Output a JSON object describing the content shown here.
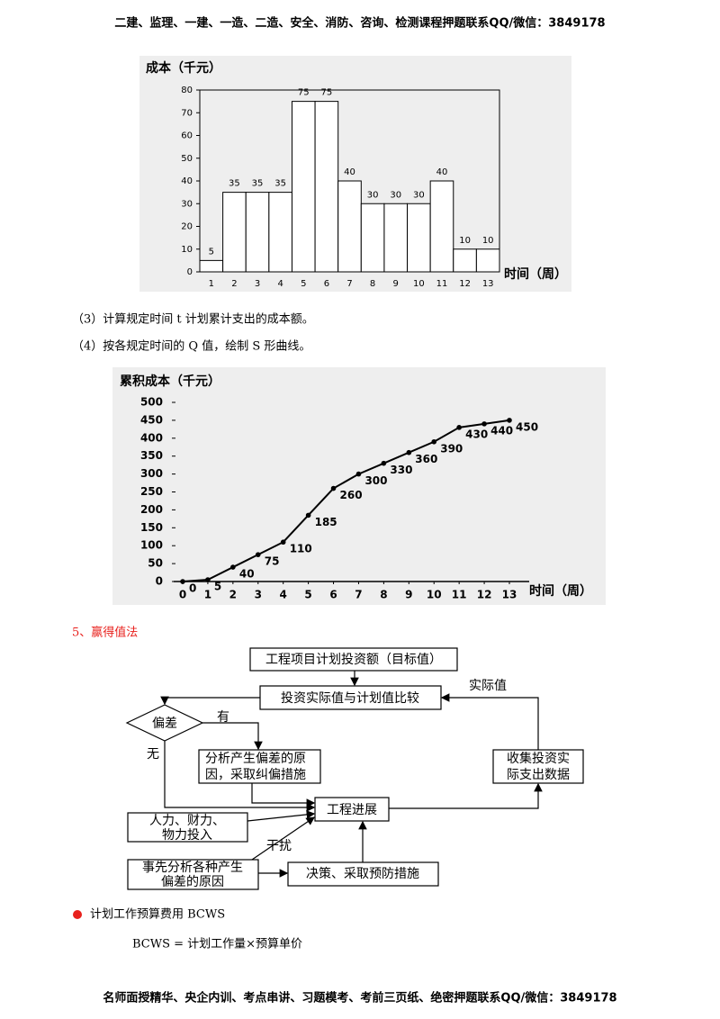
{
  "header": "二建、监理、一建、一造、二造、安全、消防、咨询、检测课程押题联系QQ/微信：3849178",
  "chart_data": [
    {
      "type": "bar",
      "y_label": "成本（千元）",
      "x_label": "时间（周）",
      "categories": [
        "1",
        "2",
        "3",
        "4",
        "5",
        "6",
        "7",
        "8",
        "9",
        "10",
        "11",
        "12",
        "13"
      ],
      "values": [
        5,
        35,
        35,
        35,
        75,
        75,
        40,
        30,
        30,
        30,
        40,
        10,
        10
      ],
      "color": "#ffffff",
      "edge_color": "#000000",
      "ylim": [
        0,
        80
      ],
      "yticks": [
        0,
        10,
        20,
        30,
        40,
        50,
        60,
        70,
        80
      ]
    },
    {
      "type": "line",
      "y_label": "累积成本（千元）",
      "x_label": "时间（周）",
      "x": [
        0,
        1,
        2,
        3,
        4,
        5,
        6,
        7,
        8,
        9,
        10,
        11,
        12,
        13
      ],
      "values": [
        0,
        5,
        40,
        75,
        110,
        185,
        260,
        300,
        330,
        360,
        390,
        430,
        440,
        450
      ],
      "color": "#000000",
      "xlim": [
        0,
        13
      ],
      "xticks": [
        0,
        1,
        2,
        3,
        4,
        5,
        6,
        7,
        8,
        9,
        10,
        11,
        12,
        13
      ],
      "ylim": [
        0,
        500
      ],
      "yticks": [
        0,
        50,
        100,
        150,
        200,
        250,
        300,
        350,
        400,
        450,
        500
      ]
    }
  ],
  "steps": [
    "（3）计算规定时间 t 计划累计支出的成本额。",
    "（4）按各规定时间的 Q 值，绘制 S 形曲线。"
  ],
  "section_title": "5、赢得值法",
  "diagram": {
    "nodes": [
      {
        "lines": [
          "工程项目计划投资额（目标值）"
        ]
      },
      {
        "lines": [
          "投资实际值与计划值比较"
        ]
      },
      {
        "lines": [
          "偏差"
        ]
      },
      {
        "lines": [
          "分析产生偏差的原",
          "因，采取纠偏措施"
        ]
      },
      {
        "lines": [
          "工程进展"
        ]
      },
      {
        "lines": [
          "收集投资实",
          "际支出数据"
        ]
      },
      {
        "lines": [
          "人力、财力、",
          "物力投入"
        ]
      },
      {
        "lines": [
          "事先分析各种产生",
          "偏差的原因"
        ]
      },
      {
        "lines": [
          "决策、采取预防措施"
        ]
      }
    ],
    "edge_labels": [
      "有",
      "无",
      "实际值",
      "干扰"
    ]
  },
  "bullet": "计划工作预算费用 BCWS",
  "formula": "BCWS = 计划工作量×预算单价",
  "footer": "名师面授精华、央企内训、考点串讲、习题模考、考前三页纸、绝密押题联系QQ/微信：3849178"
}
